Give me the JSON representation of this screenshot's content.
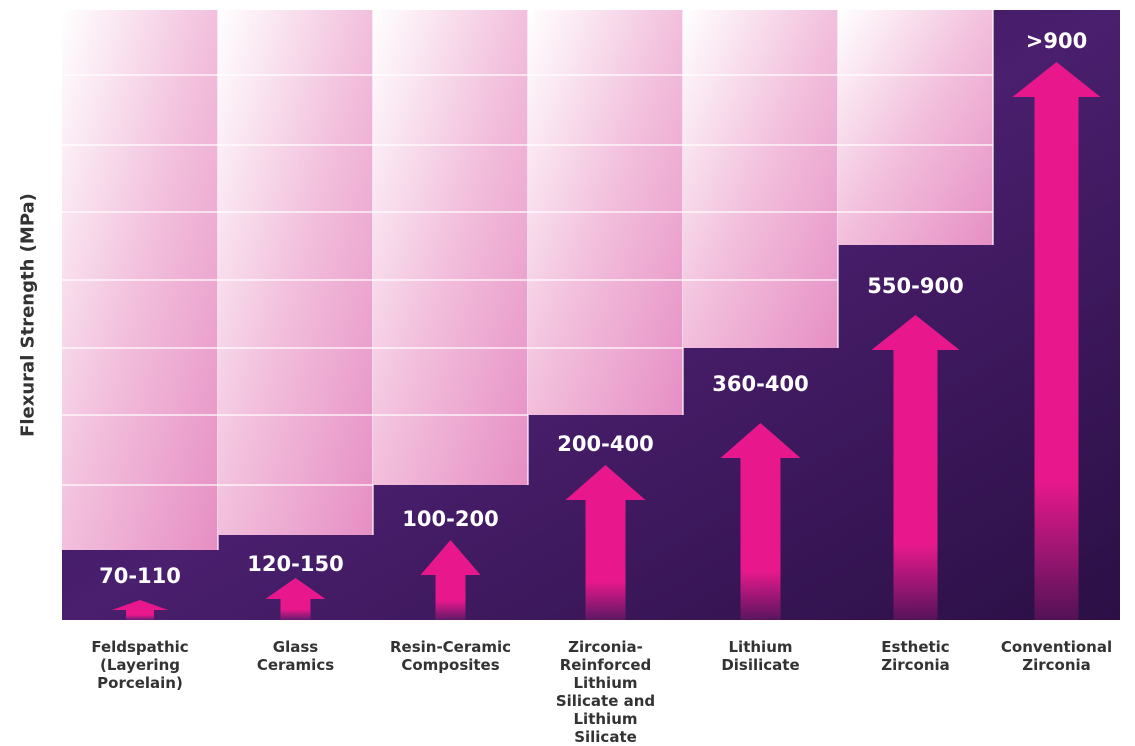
{
  "chart_data": {
    "type": "step-arrows",
    "y_axis_label": "Flexural Strength (MPa)",
    "categories": [
      "Feldspathic (Layering Porcelain)",
      "Glass Ceramics",
      "Resin-Ceramic Composites",
      "Zirconia-Reinforced Lithium Silicate and Lithium Silicate",
      "Lithium Disilicate",
      "Esthetic Zirconia",
      "Conventional Zirconia"
    ],
    "range_labels": [
      "70-110",
      "120-150",
      "100-200",
      "200-400",
      "360-400",
      "550-900",
      ">900"
    ],
    "color": "#e8188c"
  }
}
